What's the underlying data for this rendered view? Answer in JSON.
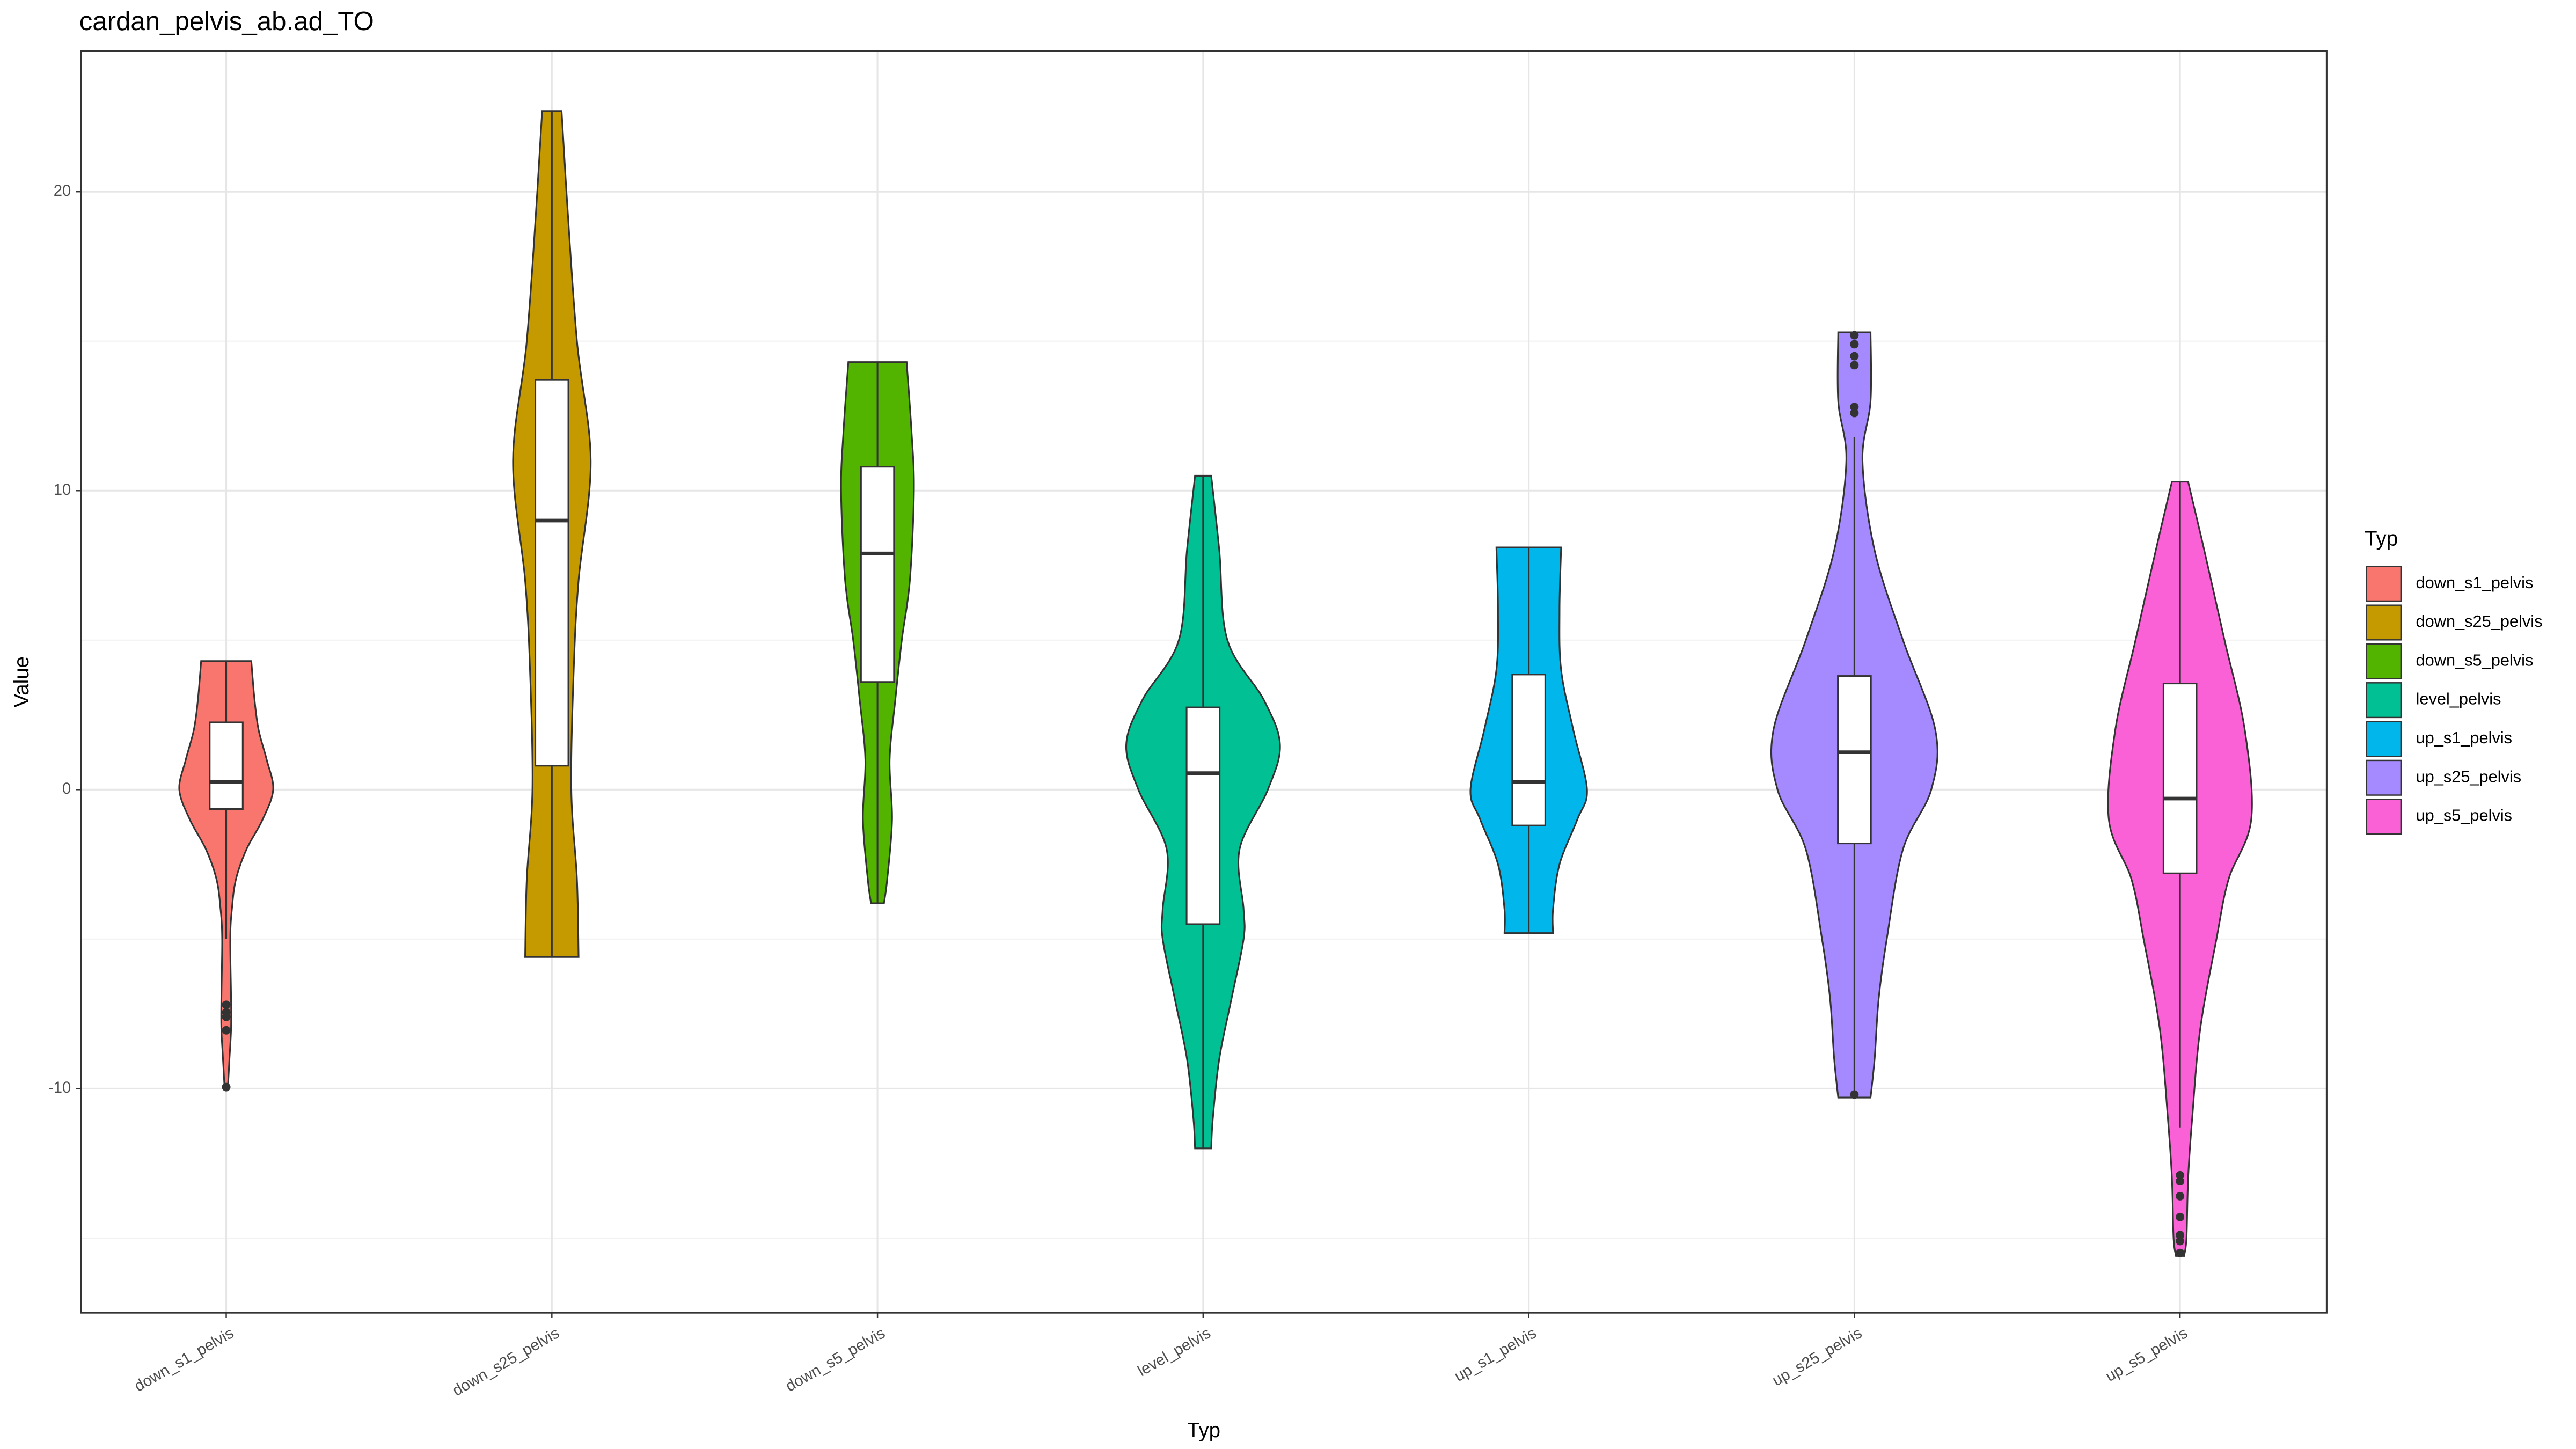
{
  "chart_data": {
    "type": "violin",
    "title": "cardan_pelvis_ab.ad_TO",
    "x_label": "Typ",
    "y_label": "Value",
    "legend_title": "Typ",
    "legend_position": "right",
    "grid": true,
    "ylim": [
      -17.5,
      24.7
    ],
    "yticks": [
      -10,
      0,
      10,
      20
    ],
    "minor_grid": [
      -15,
      -5,
      5,
      15
    ],
    "categories": [
      "down_s1_pelvis",
      "down_s25_pelvis",
      "down_s5_pelvis",
      "level_pelvis",
      "up_s1_pelvis",
      "up_s25_pelvis",
      "up_s5_pelvis"
    ],
    "series": [
      {
        "name": "down_s1_pelvis",
        "color": "#F8766D",
        "violin_y": [
          4.3,
          3,
          2,
          1,
          0,
          -1,
          -2,
          -3,
          -4,
          -5,
          -7,
          -8,
          -9,
          -10
        ],
        "violin_width": [
          0.31,
          0.35,
          0.4,
          0.5,
          0.58,
          0.45,
          0.25,
          0.12,
          0.07,
          0.05,
          0.06,
          0.06,
          0.04,
          0.02
        ],
        "whisker_low": -5,
        "q1": -0.65,
        "median": 0.25,
        "q3": 2.25,
        "whisker_high": 4.3,
        "outliers": [
          -7.2,
          -7.45,
          -7.6,
          -8.05,
          -9.95
        ]
      },
      {
        "name": "down_s25_pelvis",
        "color": "#C49A00",
        "violin_y": [
          22.7,
          20,
          15,
          11,
          7,
          4,
          0,
          -3,
          -5.6
        ],
        "violin_width": [
          0.12,
          0.18,
          0.31,
          0.48,
          0.33,
          0.27,
          0.24,
          0.31,
          0.33
        ],
        "whisker_low": -5.6,
        "q1": 0.8,
        "median": 9.0,
        "q3": 13.7,
        "whisker_high": 22.7,
        "outliers": []
      },
      {
        "name": "down_s5_pelvis",
        "color": "#53B400",
        "violin_y": [
          14.3,
          12,
          10,
          7,
          5,
          3,
          1,
          -1,
          -3,
          -3.8
        ],
        "violin_width": [
          0.36,
          0.42,
          0.45,
          0.4,
          0.3,
          0.22,
          0.15,
          0.18,
          0.12,
          0.08
        ],
        "whisker_low": -3.8,
        "q1": 3.6,
        "median": 7.9,
        "q3": 10.8,
        "whisker_high": 14.3,
        "outliers": []
      },
      {
        "name": "level_pelvis",
        "color": "#00C094",
        "violin_y": [
          10.5,
          8,
          5,
          3,
          1.5,
          0,
          -2,
          -4,
          -5,
          -7,
          -9,
          -11,
          -12
        ],
        "violin_width": [
          0.1,
          0.2,
          0.3,
          0.75,
          0.95,
          0.8,
          0.45,
          0.5,
          0.5,
          0.35,
          0.2,
          0.12,
          0.1
        ],
        "whisker_low": -12,
        "q1": -4.5,
        "median": 0.55,
        "q3": 2.75,
        "whisker_high": 10.5,
        "outliers": []
      },
      {
        "name": "up_s1_pelvis",
        "color": "#00B6EB",
        "violin_y": [
          8.1,
          6,
          4,
          2,
          0,
          -1,
          -2.5,
          -4,
          -4.8
        ],
        "violin_width": [
          0.4,
          0.38,
          0.4,
          0.55,
          0.72,
          0.6,
          0.38,
          0.3,
          0.3
        ],
        "whisker_low": -4.8,
        "q1": -1.2,
        "median": 0.25,
        "q3": 3.85,
        "whisker_high": 8.1,
        "outliers": []
      },
      {
        "name": "up_s25_pelvis",
        "color": "#A58AFF",
        "violin_y": [
          15.3,
          13,
          11,
          8,
          5,
          2,
          0,
          -2,
          -5,
          -7,
          -9,
          -10.3
        ],
        "violin_width": [
          0.2,
          0.2,
          0.1,
          0.25,
          0.6,
          1.0,
          0.95,
          0.6,
          0.4,
          0.3,
          0.25,
          0.2
        ],
        "whisker_low": -10.3,
        "q1": -1.8,
        "median": 1.25,
        "q3": 3.8,
        "whisker_high": 11.8,
        "outliers": [
          15.2,
          14.9,
          14.5,
          14.2,
          12.8,
          12.6,
          -10.2
        ]
      },
      {
        "name": "up_s5_pelvis",
        "color": "#FB61D7",
        "violin_y": [
          10.3,
          8,
          5,
          2,
          -1,
          -3,
          -5,
          -8,
          -11,
          -13,
          -15,
          -15.6
        ],
        "violin_width": [
          0.1,
          0.3,
          0.55,
          0.8,
          0.88,
          0.6,
          0.45,
          0.25,
          0.15,
          0.1,
          0.08,
          0.05
        ],
        "whisker_low": -11.3,
        "q1": -2.8,
        "median": -0.3,
        "q3": 3.55,
        "whisker_high": 10.3,
        "outliers": [
          -12.9,
          -13.1,
          -13.6,
          -14.3,
          -14.9,
          -15.1,
          -15.5
        ]
      }
    ]
  }
}
